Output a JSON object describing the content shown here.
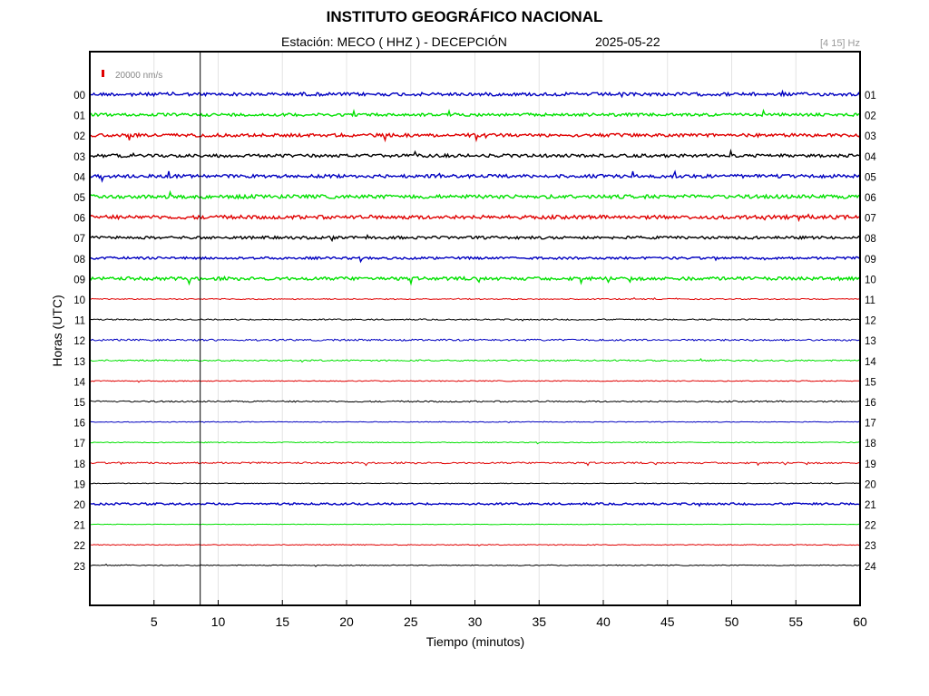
{
  "header": {
    "institution": "INSTITUTO GEOGRÁFICO NACIONAL",
    "station": "Estación:  MECO ( HHZ ) - DECEPCIÓN",
    "date": "2025-05-22",
    "filter": "[4 15] Hz"
  },
  "chart_data": {
    "type": "line",
    "title": "INSTITUTO GEOGRÁFICO NACIONAL",
    "xlabel": "Tiempo (minutos)",
    "ylabel": "Horas (UTC)",
    "xlim": [
      0,
      60
    ],
    "x_ticks": [
      5,
      10,
      15,
      20,
      25,
      30,
      35,
      40,
      45,
      50,
      55,
      60
    ],
    "scale_label": "20000 nm/s",
    "marker_minute": 8.6,
    "grid": "vertical",
    "left_labels": [
      "00",
      "01",
      "02",
      "03",
      "04",
      "05",
      "06",
      "07",
      "08",
      "09",
      "10",
      "11",
      "12",
      "13",
      "14",
      "15",
      "16",
      "17",
      "18",
      "19",
      "20",
      "21",
      "22",
      "23"
    ],
    "right_labels": [
      "01",
      "02",
      "03",
      "04",
      "05",
      "06",
      "07",
      "08",
      "09",
      "10",
      "11",
      "12",
      "13",
      "14",
      "15",
      "16",
      "17",
      "18",
      "19",
      "20",
      "21",
      "22",
      "23",
      "24"
    ],
    "trace_colors": [
      "#0000c0",
      "#00e000",
      "#e00000",
      "#000000"
    ],
    "trace_noise": [
      1.8,
      1.6,
      1.8,
      1.7,
      1.8,
      2.0,
      2.0,
      1.5,
      1.3,
      1.8,
      0.6,
      0.7,
      1.0,
      0.8,
      0.5,
      0.8,
      0.4,
      0.5,
      0.9,
      0.4,
      1.1,
      0.3,
      0.5,
      0.5
    ]
  }
}
